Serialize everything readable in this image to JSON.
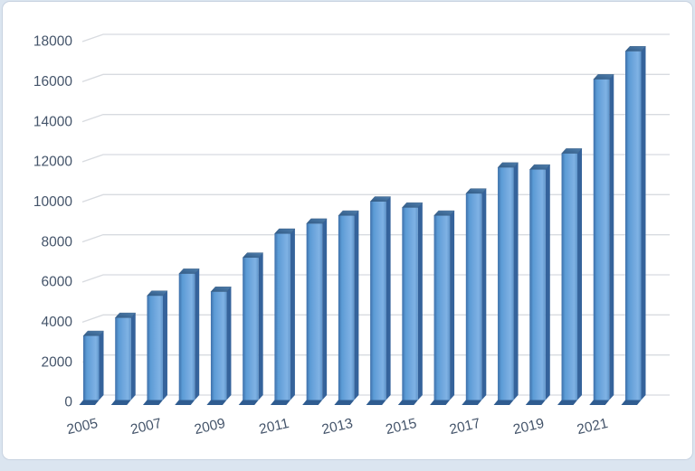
{
  "page": {
    "background_color": "#dbe5f0",
    "card_background": "#ffffff",
    "card_border_color": "#c7d2e0"
  },
  "chart_data": {
    "type": "bar",
    "style": "3d-column",
    "title": "",
    "xlabel": "",
    "ylabel": "",
    "categories": [
      "2005",
      "2006",
      "2007",
      "2008",
      "2009",
      "2010",
      "2011",
      "2012",
      "2013",
      "2014",
      "2015",
      "2016",
      "2017",
      "2018",
      "2019",
      "2020",
      "2021",
      "2022"
    ],
    "values": [
      3200,
      4100,
      5200,
      6300,
      5400,
      7100,
      8300,
      8800,
      9200,
      9900,
      9600,
      9200,
      10300,
      11600,
      11500,
      12300,
      16000,
      17400
    ],
    "x_tick_labels": [
      "2005",
      "2007",
      "2009",
      "2011",
      "2013",
      "2015",
      "2017",
      "2019",
      "2021"
    ],
    "x_tick_every": 2,
    "y_ticks": [
      0,
      2000,
      4000,
      6000,
      8000,
      10000,
      12000,
      14000,
      16000,
      18000
    ],
    "ylim": [
      0,
      18000
    ],
    "grid": "horizontal",
    "legend": "none",
    "colors": {
      "bar_front_gradient": [
        "#3d6fa9",
        "#5b9bd5",
        "#6ea6dd",
        "#7fb2e4",
        "#5f95cb"
      ],
      "bar_top_gradient": [
        "#315a84",
        "#4f7fae"
      ],
      "bar_right_sliver": "#35639b",
      "bar_base": "#2f5c90",
      "gridline": "#d8dbe0",
      "axis_label": "#44546a"
    }
  }
}
